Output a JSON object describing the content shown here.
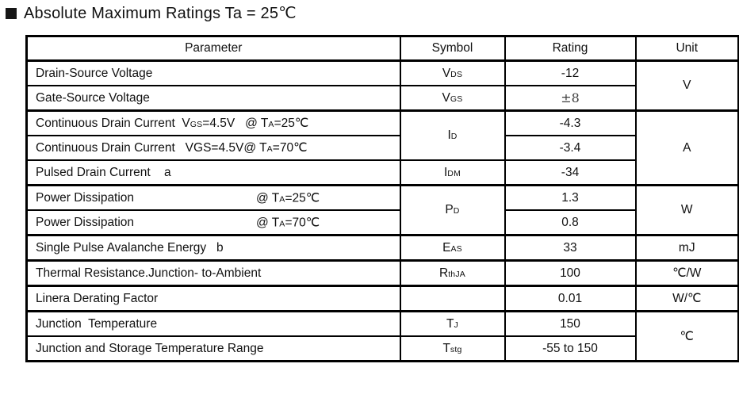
{
  "title": {
    "bullet_icon": "black-square",
    "text": "Absolute Maximum Ratings Ta = 25℃"
  },
  "table": {
    "headers": [
      "Parameter",
      "Symbol",
      "Rating",
      "Unit"
    ],
    "subscript_marker": "~",
    "rows": [
      {
        "param": "Drain-Source Voltage",
        "symbol": "V~DS~",
        "rating": "-12",
        "unit": {
          "text": "V",
          "span": 2
        }
      },
      {
        "param": "Gate-Source Voltage",
        "symbol": "V~GS~",
        "rating": "±8"
      },
      {
        "param": "Continuous Drain Current  V~GS~=4.5V   @ T~A~=25℃",
        "symbol": {
          "text": "I~D~",
          "span": 2
        },
        "rating": "-4.3",
        "unit": {
          "text": "A",
          "span": 3
        }
      },
      {
        "param": "Continuous Drain Current   VGS=4.5V@ T~A~=70℃",
        "rating": "-3.4"
      },
      {
        "param": "Pulsed Drain Current    a",
        "symbol": "I~DM~",
        "rating": "-34"
      },
      {
        "param": "Power Dissipation",
        "cond": "@ T~A~=25℃",
        "symbol": {
          "text": "P~D~",
          "span": 2
        },
        "rating": "1.3",
        "unit": {
          "text": "W",
          "span": 2
        }
      },
      {
        "param": "Power Dissipation",
        "cond": "@ T~A~=70℃",
        "rating": "0.8"
      },
      {
        "param": "Single Pulse Avalanche Energy   b",
        "symbol": "E~AS~",
        "rating": "33",
        "unit": "mJ"
      },
      {
        "param": "Thermal Resistance.Junction- to-Ambient",
        "symbol": "R~thJA~",
        "rating": "100",
        "unit": "℃/W"
      },
      {
        "param": "Linera Derating Factor",
        "symbol": "",
        "rating": "0.01",
        "unit": "W/℃"
      },
      {
        "param": "Junction  Temperature",
        "symbol": "T~J~",
        "rating": "150",
        "unit": {
          "text": "℃",
          "span": 2
        }
      },
      {
        "param": "Junction and Storage Temperature Range",
        "symbol": "T~stg~",
        "rating": "-55 to 150"
      }
    ]
  },
  "colors": {
    "text": "#111111",
    "border": "#000000",
    "background": "#ffffff",
    "plusminus_value": "#3d3d3d"
  }
}
